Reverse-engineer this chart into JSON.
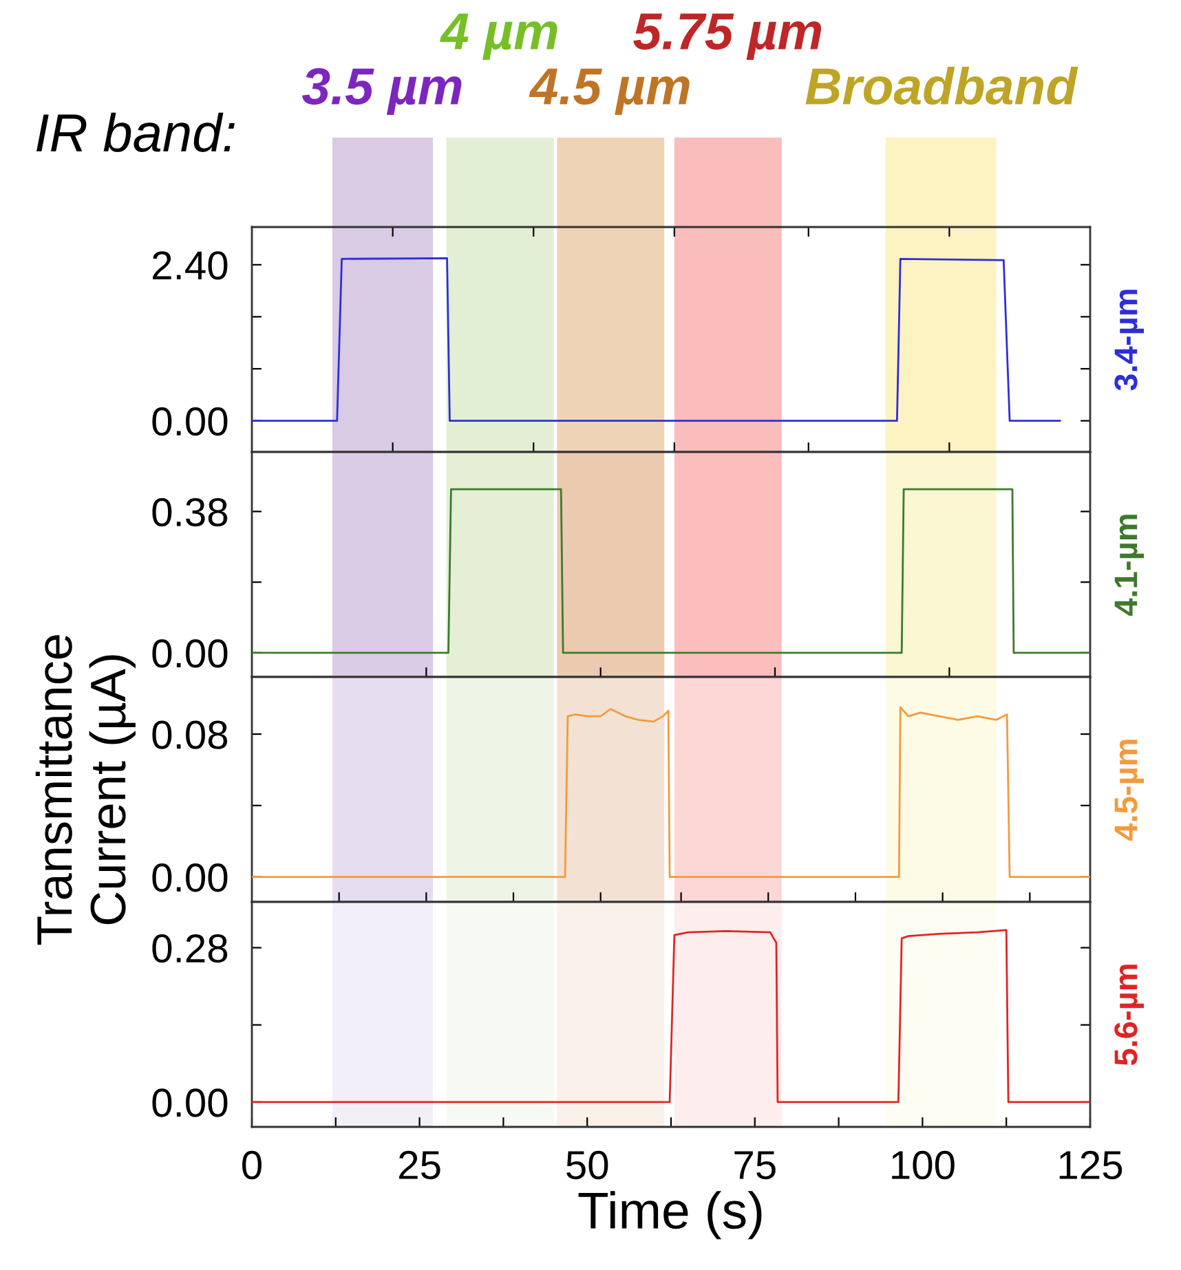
{
  "chart_data": [
    {
      "type": "line",
      "xlim": [
        0,
        125
      ],
      "xticks": [
        {
          "value": 21,
          "label": null
        },
        {
          "value": 42,
          "label": null
        },
        {
          "value": 63,
          "label": null
        },
        {
          "value": 83,
          "label": null
        },
        {
          "value": 104,
          "label": null
        }
      ],
      "ylim": [
        -0.48,
        2.98
      ],
      "yticks": [
        {
          "value": 0,
          "label": "0.00"
        },
        {
          "value": 0.8,
          "label": null
        },
        {
          "value": 1.6,
          "label": null
        },
        {
          "value": 2.4,
          "label": "2.40"
        }
      ],
      "tick_labels": "y",
      "annotations": [
        "IR band:"
      ],
      "bands": [
        {
          "axis": "x",
          "from": 12,
          "to": 27,
          "label": "3.5 µm",
          "color": "#d9cbe4"
        },
        {
          "axis": "x",
          "from": 29,
          "to": 45,
          "label": "4 µm",
          "color": "#e2efd4"
        },
        {
          "axis": "x",
          "from": 45.5,
          "to": 61.5,
          "label": "4.5 µm",
          "color": "#efd3b6"
        },
        {
          "axis": "x",
          "from": 63,
          "to": 79,
          "label": "5.75 µm",
          "color": "#fbbcbc"
        },
        {
          "axis": "x",
          "from": 94.5,
          "to": 111,
          "label": "Broadband",
          "color": "#fcf2c2"
        }
      ],
      "series": [
        {
          "name": "3.4-µm",
          "color": "#2e2ed8",
          "x": [
            0,
            12.7,
            13.4,
            29.1,
            29.5,
            96.2,
            96.7,
            112.1,
            113.0,
            120.5
          ],
          "values": [
            0,
            0,
            2.49,
            2.5,
            0,
            0,
            2.49,
            2.47,
            0,
            0
          ]
        }
      ]
    },
    {
      "type": "line",
      "xlim": [
        0,
        125
      ],
      "xticks": [
        {
          "value": 26,
          "label": null
        },
        {
          "value": 52,
          "label": null
        },
        {
          "value": 78,
          "label": null
        },
        {
          "value": 104,
          "label": null
        }
      ],
      "ylim": [
        -0.065,
        0.54
      ],
      "yticks": [
        {
          "value": 0,
          "label": "0.00"
        },
        {
          "value": 0.19,
          "label": null
        },
        {
          "value": 0.38,
          "label": "0.38"
        }
      ],
      "tick_labels": "y",
      "bands": [
        {
          "axis": "x",
          "from": 12,
          "to": 27,
          "color": "#dacbe6"
        },
        {
          "axis": "x",
          "from": 29,
          "to": 45,
          "color": "#e4efd6"
        },
        {
          "axis": "x",
          "from": 45.5,
          "to": 61.5,
          "color": "#eccab0"
        },
        {
          "axis": "x",
          "from": 63,
          "to": 79,
          "color": "#fcbdbd"
        },
        {
          "axis": "x",
          "from": 94.5,
          "to": 111,
          "color": "#fbf7d2"
        }
      ],
      "series": [
        {
          "name": "4.1-µm",
          "color": "#3d7a2c",
          "x": [
            0,
            29.3,
            29.7,
            46.1,
            46.4,
            96.9,
            97.2,
            113.4,
            113.6,
            125
          ],
          "values": [
            0,
            0,
            0.44,
            0.44,
            0,
            0,
            0.44,
            0.44,
            0,
            0
          ]
        }
      ]
    },
    {
      "type": "line",
      "xlim": [
        0,
        125
      ],
      "xticks": [
        {
          "value": 13,
          "label": null
        },
        {
          "value": 26,
          "label": null
        },
        {
          "value": 39,
          "label": null
        },
        {
          "value": 52,
          "label": null
        },
        {
          "value": 64,
          "label": null
        },
        {
          "value": 77,
          "label": null
        },
        {
          "value": 90,
          "label": null
        },
        {
          "value": 103,
          "label": null
        },
        {
          "value": 116,
          "label": null
        }
      ],
      "ylim": [
        -0.014,
        0.112
      ],
      "yticks": [
        {
          "value": 0,
          "label": "0.00"
        },
        {
          "value": 0.04,
          "label": null
        },
        {
          "value": 0.08,
          "label": "0.08"
        }
      ],
      "tick_labels": "y",
      "ylabel": "Transmittance\nCurrent (µA)",
      "bands": [
        {
          "axis": "x",
          "from": 12,
          "to": 27,
          "color": "#e6dcef"
        },
        {
          "axis": "x",
          "from": 29,
          "to": 45,
          "color": "#eef5e6"
        },
        {
          "axis": "x",
          "from": 45.5,
          "to": 61.5,
          "color": "#f3e2d3"
        },
        {
          "axis": "x",
          "from": 63,
          "to": 79,
          "color": "#fdd6d6"
        },
        {
          "axis": "x",
          "from": 94.5,
          "to": 111,
          "color": "#fdfbe6"
        }
      ],
      "series": [
        {
          "name": "4.5-µm",
          "color": "#f39a3c",
          "x": [
            0,
            46.7,
            47.1,
            48.2,
            50.1,
            52.0,
            53.5,
            55.7,
            57.6,
            59.9,
            61.3,
            62.1,
            62.3,
            96.5,
            96.7,
            97.9,
            99.7,
            102.5,
            105.3,
            108.2,
            111.0,
            112.6,
            113.0,
            125
          ],
          "values": [
            0,
            0,
            0.09,
            0.091,
            0.09,
            0.09,
            0.094,
            0.09,
            0.088,
            0.087,
            0.09,
            0.093,
            0,
            0,
            0.095,
            0.09,
            0.092,
            0.09,
            0.088,
            0.09,
            0.088,
            0.091,
            0,
            0
          ]
        }
      ]
    },
    {
      "type": "line",
      "xlim": [
        0,
        125
      ],
      "xticks": [
        0,
        {
          "value": 12.5,
          "label": null
        },
        25,
        {
          "value": 37.5,
          "label": null
        },
        50,
        {
          "value": 62.5,
          "label": null
        },
        75,
        {
          "value": 87.5,
          "label": null
        },
        100,
        {
          "value": 112.5,
          "label": null
        },
        125
      ],
      "ylim": [
        -0.045,
        0.363
      ],
      "yticks": [
        {
          "value": 0,
          "label": "0.00"
        },
        {
          "value": 0.14,
          "label": null
        },
        {
          "value": 0.28,
          "label": "0.28"
        }
      ],
      "xlabel": "Time (s)",
      "bands": [
        {
          "axis": "x",
          "from": 12,
          "to": 27,
          "color": "#f3eff8"
        },
        {
          "axis": "x",
          "from": 29,
          "to": 45,
          "color": "#f6faf2"
        },
        {
          "axis": "x",
          "from": 45.5,
          "to": 61.5,
          "color": "#faf1ea"
        },
        {
          "axis": "x",
          "from": 63,
          "to": 79,
          "color": "#feeded"
        },
        {
          "axis": "x",
          "from": 94.5,
          "to": 111,
          "color": "#fefdf3"
        }
      ],
      "series": [
        {
          "name": "5.6-µm",
          "color": "#e02424",
          "x": [
            0,
            62.3,
            63.0,
            65.1,
            70.7,
            77.3,
            77.8,
            78.2,
            78.4,
            96.4,
            96.9,
            97.9,
            102.5,
            108.2,
            112.5,
            112.8,
            125
          ],
          "values": [
            0,
            0,
            0.303,
            0.308,
            0.31,
            0.308,
            0.297,
            0.289,
            0,
            0,
            0.297,
            0.301,
            0.305,
            0.308,
            0.312,
            0,
            0
          ]
        }
      ]
    }
  ]
}
